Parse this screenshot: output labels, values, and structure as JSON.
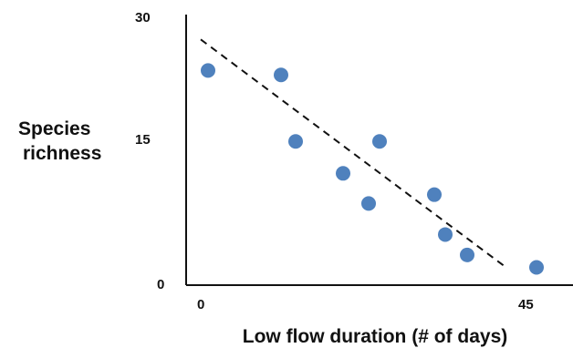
{
  "chart_data": {
    "type": "scatter",
    "title": "",
    "xlabel": "Low flow duration (# of days)",
    "ylabel_lines": [
      "Species",
      "richness"
    ],
    "xlim": [
      0,
      45
    ],
    "ylim": [
      0,
      30
    ],
    "x_ticks": [
      "0",
      "45"
    ],
    "y_ticks": [
      "30",
      "15",
      "0"
    ],
    "grid": false,
    "legend": "none",
    "point_color": "#4f81bd",
    "trendline": {
      "style": "dashed",
      "color": "#111111",
      "x": [
        0,
        41.5
      ],
      "y": [
        27.5,
        2.0
      ]
    },
    "series": [
      {
        "x": [
          1.0,
          11.0,
          13.0,
          19.5,
          23.0,
          24.5,
          32.0,
          33.5,
          36.5,
          46.0
        ],
        "y": [
          24.0,
          23.5,
          16.0,
          12.4,
          9.0,
          16.0,
          10.0,
          5.5,
          3.2,
          1.8
        ]
      }
    ]
  }
}
